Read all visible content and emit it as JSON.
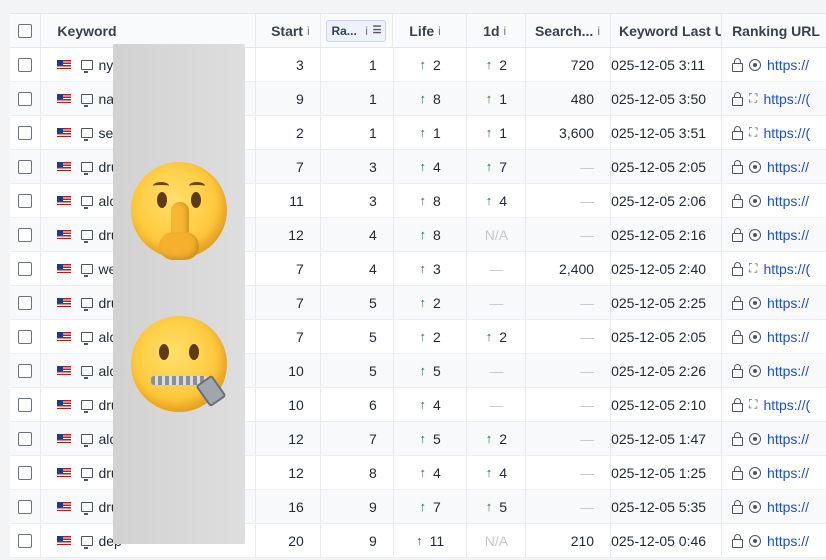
{
  "columns": {
    "keyword": "Keyword",
    "start": "Start",
    "rank": "Ra...",
    "life": "Life",
    "oned": "1d",
    "search": "Search...",
    "last": "Keyword Last U",
    "url": "Ranking URL",
    "info": "i"
  },
  "rows": [
    {
      "kw": "nyc",
      "start": "3",
      "rank": "1",
      "life": "2",
      "life_up": true,
      "oned": "2",
      "oned_up": true,
      "sv": "720",
      "last": "025-12-05 3:11",
      "icon": "target-icon",
      "url": "https://"
    },
    {
      "kw": "nas",
      "start": "9",
      "rank": "1",
      "life": "8",
      "life_up": true,
      "oned": "1",
      "oned_up": true,
      "sv": "480",
      "last": "025-12-05 3:50",
      "icon": "expand-icon",
      "url": "https://("
    },
    {
      "kw": "seo",
      "start": "2",
      "rank": "1",
      "life": "1",
      "life_up": true,
      "oned": "1",
      "oned_up": true,
      "sv": "3,600",
      "last": "025-12-05 3:51",
      "icon": "expand-icon",
      "url": "https://("
    },
    {
      "kw": "dru",
      "start": "7",
      "rank": "3",
      "life": "4",
      "life_up": true,
      "oned": "7",
      "oned_up": true,
      "sv": "—",
      "last": "025-12-05 2:05",
      "icon": "target-icon",
      "url": "https://"
    },
    {
      "kw": "alco",
      "start": "11",
      "rank": "3",
      "life": "8",
      "life_up": true,
      "oned": "4",
      "oned_up": true,
      "sv": "—",
      "last": "025-12-05 2:06",
      "icon": "target-icon",
      "url": "https://"
    },
    {
      "kw": "dru",
      "start": "12",
      "rank": "4",
      "life": "8",
      "life_up": true,
      "oned": "N/A",
      "oned_up": false,
      "sv": "—",
      "last": "025-12-05 2:16",
      "icon": "target-icon",
      "url": "https://"
    },
    {
      "kw": "web",
      "start": "7",
      "rank": "4",
      "life": "3",
      "life_up": true,
      "oned": "—",
      "oned_up": false,
      "sv": "2,400",
      "last": "025-12-05 2:40",
      "icon": "expand-icon",
      "url": "https://("
    },
    {
      "kw": "dru",
      "start": "7",
      "rank": "5",
      "life": "2",
      "life_up": true,
      "oned": "—",
      "oned_up": false,
      "sv": "—",
      "last": "025-12-05 2:25",
      "icon": "target-icon",
      "url": "https://"
    },
    {
      "kw": "alco",
      "start": "7",
      "rank": "5",
      "life": "2",
      "life_up": true,
      "oned": "2",
      "oned_up": true,
      "sv": "—",
      "last": "025-12-05 2:05",
      "icon": "target-icon",
      "url": "https://"
    },
    {
      "kw": "alco",
      "start": "10",
      "rank": "5",
      "life": "5",
      "life_up": true,
      "oned": "—",
      "oned_up": false,
      "sv": "—",
      "last": "025-12-05 2:26",
      "icon": "target-icon",
      "url": "https://"
    },
    {
      "kw": "dru",
      "start": "10",
      "rank": "6",
      "life": "4",
      "life_up": true,
      "oned": "—",
      "oned_up": false,
      "sv": "—",
      "last": "025-12-05 2:10",
      "icon": "expand-icon",
      "url": "https://("
    },
    {
      "kw": "alco",
      "start": "12",
      "rank": "7",
      "life": "5",
      "life_up": true,
      "oned": "2",
      "oned_up": true,
      "sv": "—",
      "last": "025-12-05 1:47",
      "icon": "target-icon",
      "url": "https://"
    },
    {
      "kw": "dru",
      "start": "12",
      "rank": "8",
      "life": "4",
      "life_up": true,
      "oned": "4",
      "oned_up": true,
      "sv": "—",
      "last": "025-12-05 1:25",
      "icon": "target-icon",
      "url": "https://"
    },
    {
      "kw": "dru",
      "start": "16",
      "rank": "9",
      "life": "7",
      "life_up": true,
      "oned": "5",
      "oned_up": true,
      "sv": "—",
      "last": "025-12-05 5:35",
      "icon": "target-icon",
      "url": "https://"
    },
    {
      "kw": "dep",
      "start": "20",
      "rank": "9",
      "life": "11",
      "life_up": true,
      "oned": "N/A",
      "oned_up": false,
      "sv": "210",
      "last": "025-12-05 0:46",
      "icon": "target-icon",
      "url": "https://"
    }
  ]
}
